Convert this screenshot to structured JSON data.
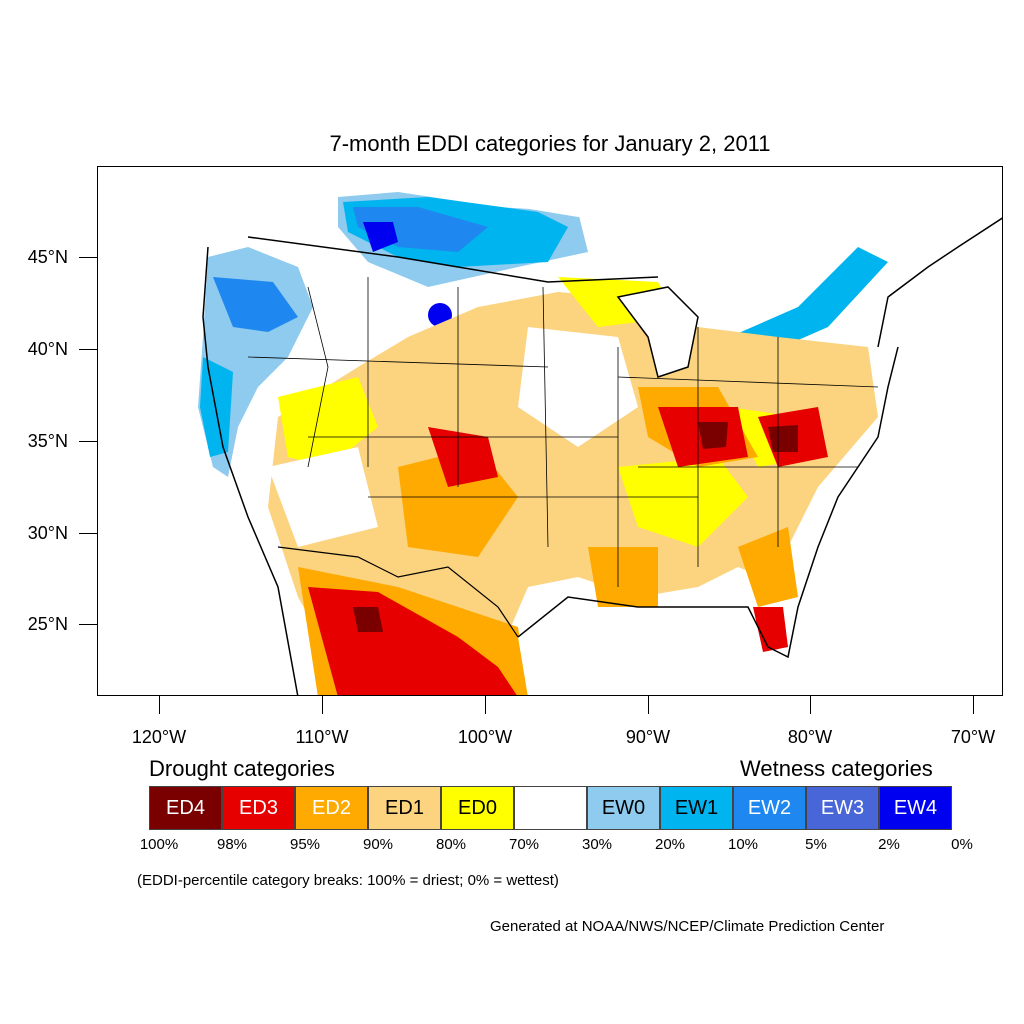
{
  "map": {
    "title": "7-month EDDI categories for January 2, 2011",
    "lat_labels": [
      "45°N",
      "40°N",
      "35°N",
      "30°N",
      "25°N"
    ],
    "lon_labels": [
      "120°W",
      "110°W",
      "100°W",
      "90°W",
      "80°W",
      "70°W"
    ]
  },
  "legend": {
    "drought_heading": "Drought categories",
    "wetness_heading": "Wetness categories",
    "categories": [
      {
        "label": "ED4",
        "color": "#7a0000",
        "text_color": "#ffffff"
      },
      {
        "label": "ED3",
        "color": "#e60000",
        "text_color": "#ffffff"
      },
      {
        "label": "ED2",
        "color": "#ffaa00",
        "text_color": "#ffffff"
      },
      {
        "label": "ED1",
        "color": "#fcd37f",
        "text_color": "#000000"
      },
      {
        "label": "ED0",
        "color": "#ffff00",
        "text_color": "#000000"
      },
      {
        "label": "",
        "color": "#ffffff",
        "text_color": "#000000"
      },
      {
        "label": "EW0",
        "color": "#8ecbee",
        "text_color": "#000000"
      },
      {
        "label": "EW1",
        "color": "#00b4f0",
        "text_color": "#000000"
      },
      {
        "label": "EW2",
        "color": "#1e88f0",
        "text_color": "#ffffff"
      },
      {
        "label": "EW3",
        "color": "#4866d8",
        "text_color": "#ffffff"
      },
      {
        "label": "EW4",
        "color": "#0000f0",
        "text_color": "#ffffff"
      }
    ],
    "breaks": [
      "100%",
      "98%",
      "95%",
      "90%",
      "80%",
      "70%",
      "30%",
      "20%",
      "10%",
      "5%",
      "2%",
      "0%"
    ],
    "note": "(EDDI-percentile category breaks: 100% = driest; 0% = wettest)"
  },
  "credit": "Generated at NOAA/NWS/NCEP/Climate Prediction Center"
}
